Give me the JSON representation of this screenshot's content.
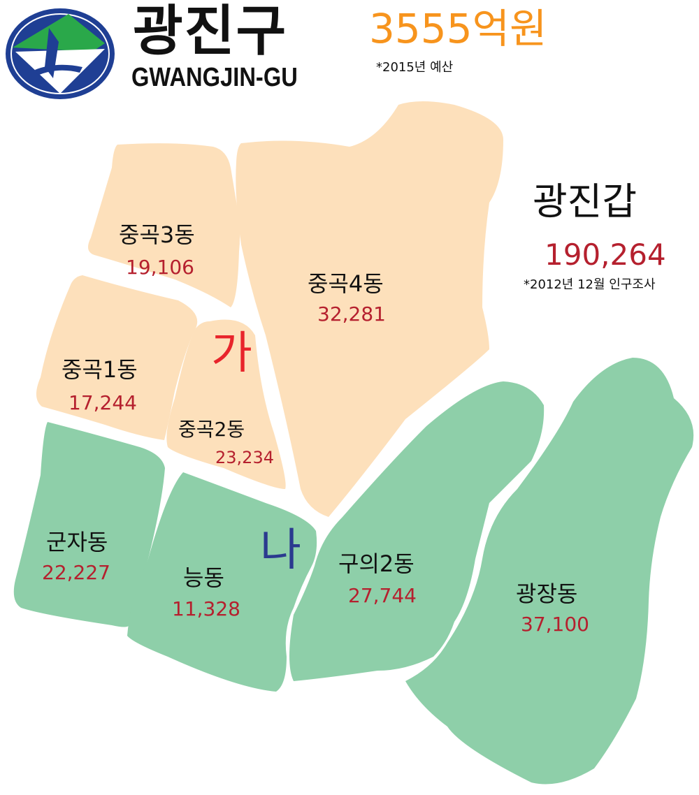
{
  "header": {
    "title_ko": "광진구",
    "title_en": "GWANGJIN-GU",
    "budget": "3555억원",
    "budget_note": "*2015년 예산"
  },
  "district": {
    "name": "광진갑",
    "population": "190,264",
    "note": "*2012년 12월 인구조사"
  },
  "zones": {
    "ga": "가",
    "na": "나"
  },
  "dongs": [
    {
      "name": "중곡3동",
      "population": "19,106",
      "zone": "ga"
    },
    {
      "name": "중곡4동",
      "population": "32,281",
      "zone": "ga"
    },
    {
      "name": "중곡1동",
      "population": "17,244",
      "zone": "ga"
    },
    {
      "name": "중곡2동",
      "population": "23,234",
      "zone": "ga"
    },
    {
      "name": "군자동",
      "population": "22,227",
      "zone": "na"
    },
    {
      "name": "능동",
      "population": "11,328",
      "zone": "na"
    },
    {
      "name": "구의2동",
      "population": "27,744",
      "zone": "na"
    },
    {
      "name": "광장동",
      "population": "37,100",
      "zone": "na"
    }
  ],
  "colors": {
    "zone_ga_fill": "#fde0bb",
    "zone_na_fill": "#8ecfa9",
    "population_text": "#b5202e",
    "budget_text": "#f7941d",
    "zone_ga_label": "#e8242b",
    "zone_na_label": "#2b3a8f"
  },
  "logo": {
    "icon": "gwangjin-gu-emblem"
  }
}
